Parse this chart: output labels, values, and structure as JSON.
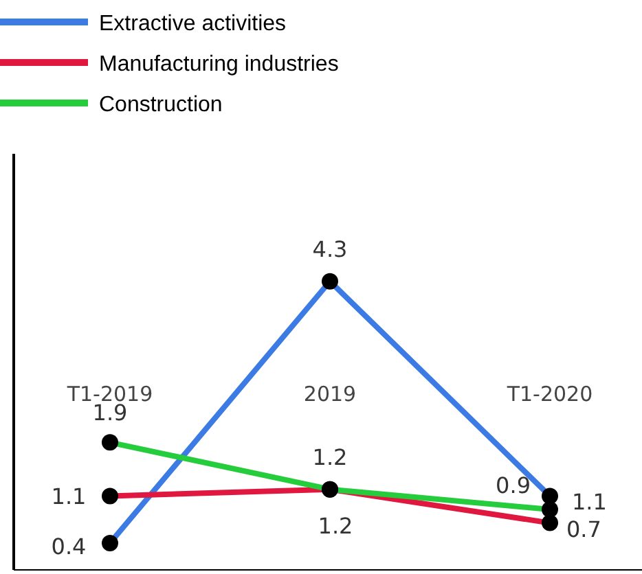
{
  "chart_data": {
    "type": "line",
    "categories": [
      "T1-2019",
      "2019",
      "T1-2020"
    ],
    "ylim": [
      0,
      6.2
    ],
    "legend": "top left",
    "marker": "circle",
    "data_labels": true,
    "grid": false,
    "series": [
      {
        "name": "Extractive activities",
        "color": "#3b7be3",
        "values": [
          0.4,
          4.3,
          1.1
        ]
      },
      {
        "name": "Manufacturing industries",
        "color": "#e0173f",
        "values": [
          1.1,
          1.2,
          0.7
        ]
      },
      {
        "name": "Construction",
        "color": "#25cc3c",
        "values": [
          1.9,
          1.2,
          0.9
        ]
      }
    ]
  }
}
